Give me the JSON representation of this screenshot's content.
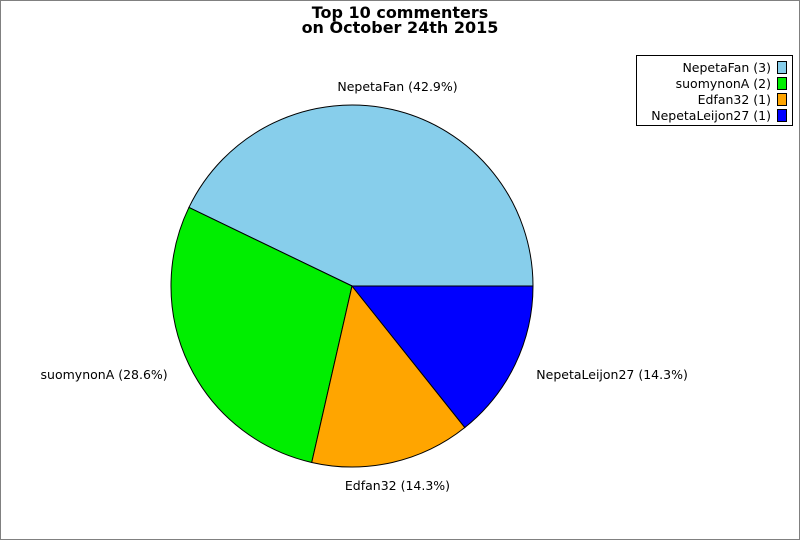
{
  "figure": {
    "title_lines": [
      "Top 10 commenters",
      "on October 24th 2015"
    ]
  },
  "chart_data": {
    "type": "pie",
    "title": "Top 10 commenters on October 24th 2015",
    "categories": [
      "NepetaFan",
      "suomynonA",
      "Edfan32",
      "NepetaLeijon27"
    ],
    "values": [
      3,
      2,
      1,
      1
    ],
    "percentages": [
      42.9,
      28.6,
      14.3,
      14.3
    ],
    "slice_labels": [
      "NepetaFan (42.9%)",
      "suomynonA (28.6%)",
      "Edfan32 (14.3%)",
      "NepetaLeijon27 (14.3%)"
    ],
    "colors": [
      "#87ceeb",
      "#00ee00",
      "#ffa500",
      "#0000ff"
    ],
    "start_angle_deg": 0,
    "direction": "counterclockwise",
    "legend_position": "top-right",
    "legend_entries": [
      "NepetaFan (3)",
      "suomynonA (2)",
      "Edfan32 (1)",
      "NepetaLeijon27 (1)"
    ]
  },
  "legend": {
    "items": [
      {
        "label": "NepetaFan (3)",
        "color": "#87ceeb"
      },
      {
        "label": "suomynonA (2)",
        "color": "#00ee00"
      },
      {
        "label": "Edfan32 (1)",
        "color": "#ffa500"
      },
      {
        "label": "NepetaLeijon27 (1)",
        "color": "#0000ff"
      }
    ]
  }
}
